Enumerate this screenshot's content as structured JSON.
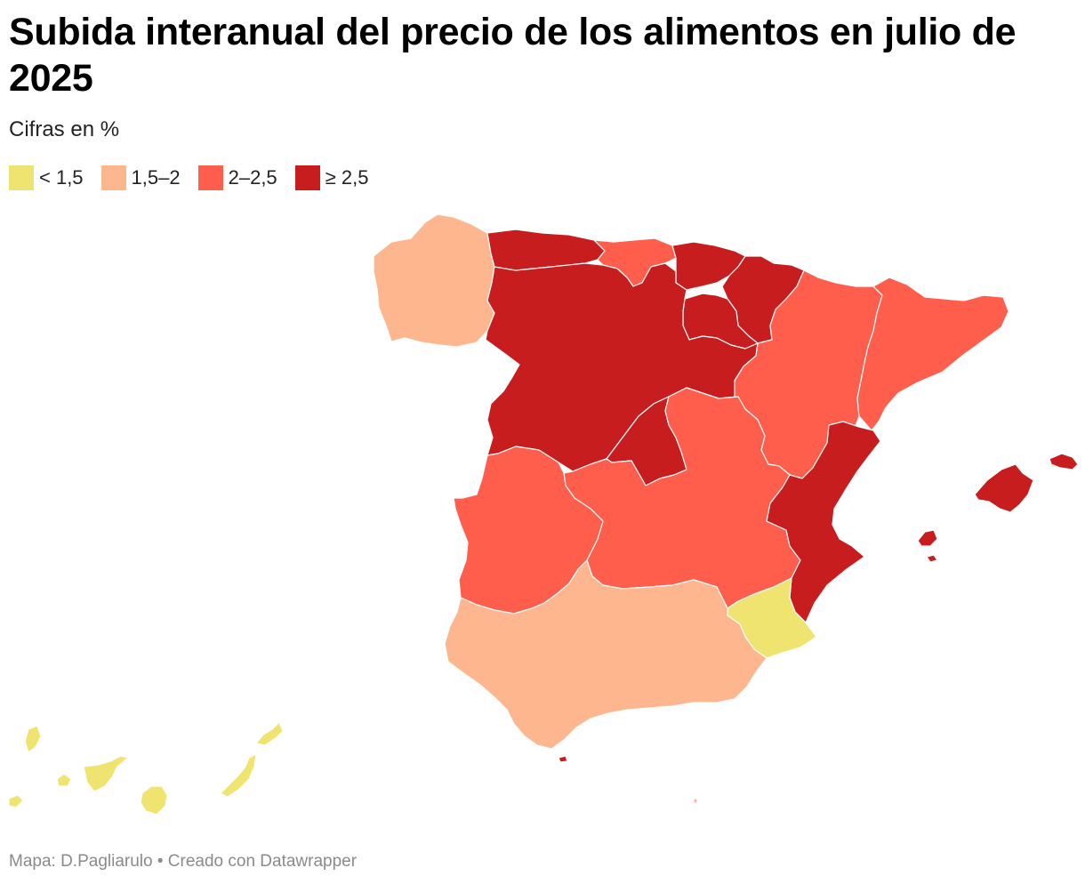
{
  "header": {
    "title": "Subida interanual del precio de los alimentos en julio de 2025",
    "subtitle": "Cifras en %"
  },
  "legend": [
    {
      "label": "< 1,5",
      "color": "#f0e471"
    },
    {
      "label": "1,5–2",
      "color": "#fdb68d"
    },
    {
      "label": "2–2,5",
      "color": "#ff5e4d"
    },
    {
      "label": "≥ 2,5",
      "color": "#c81d1f"
    }
  ],
  "regions": [
    {
      "name": "Galicia",
      "category": "1,5–2"
    },
    {
      "name": "Asturias",
      "category": "≥ 2,5"
    },
    {
      "name": "Cantabria",
      "category": "2–2,5"
    },
    {
      "name": "País Vasco",
      "category": "≥ 2,5"
    },
    {
      "name": "Navarra",
      "category": "≥ 2,5"
    },
    {
      "name": "La Rioja",
      "category": "≥ 2,5"
    },
    {
      "name": "Castilla y León",
      "category": "≥ 2,5"
    },
    {
      "name": "Aragón",
      "category": "2–2,5"
    },
    {
      "name": "Cataluña",
      "category": "2–2,5"
    },
    {
      "name": "Madrid",
      "category": "≥ 2,5"
    },
    {
      "name": "Castilla-La Mancha",
      "category": "2–2,5"
    },
    {
      "name": "Extremadura",
      "category": "2–2,5"
    },
    {
      "name": "Comunidad Valenciana",
      "category": "≥ 2,5"
    },
    {
      "name": "Islas Baleares",
      "category": "≥ 2,5"
    },
    {
      "name": "Murcia",
      "category": "< 1,5"
    },
    {
      "name": "Andalucía",
      "category": "1,5–2"
    },
    {
      "name": "Ceuta",
      "category": "≥ 2,5"
    },
    {
      "name": "Melilla",
      "category": "1,5–2"
    },
    {
      "name": "Canarias",
      "category": "< 1,5"
    }
  ],
  "footer": {
    "credit": "Mapa: D.Pagliarulo • Creado con Datawrapper"
  }
}
